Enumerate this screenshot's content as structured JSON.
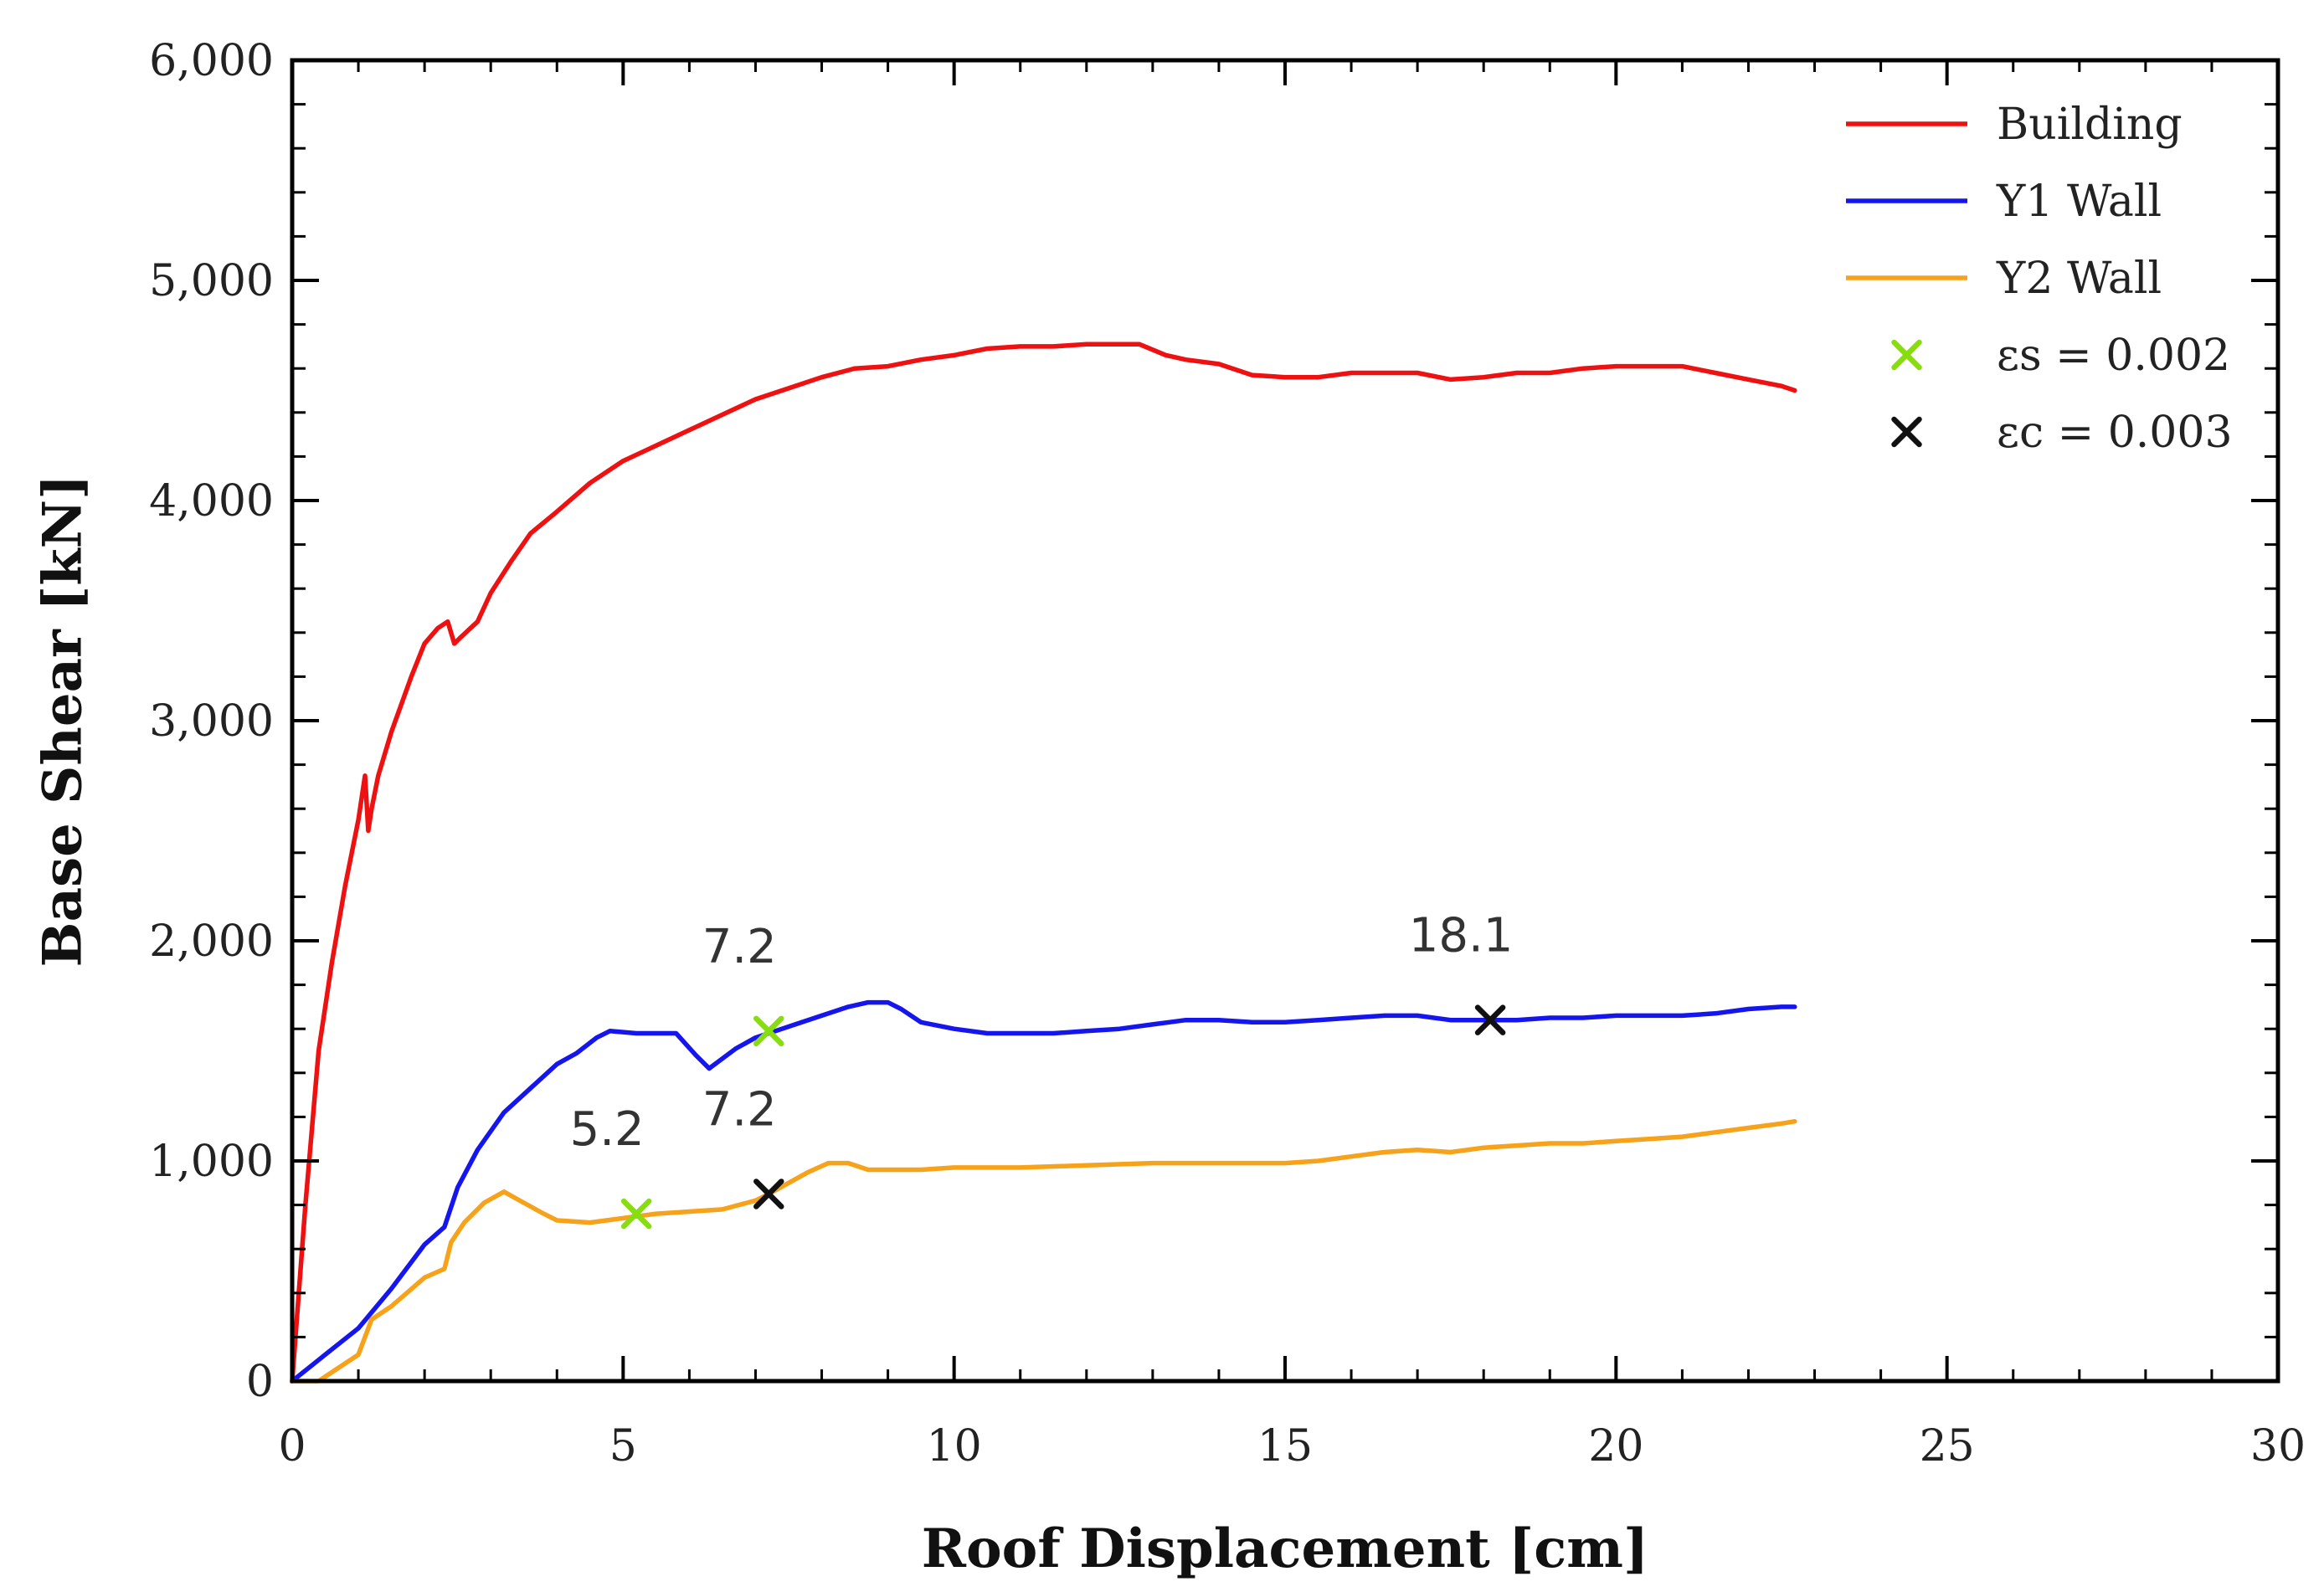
{
  "chart_data": {
    "type": "line",
    "xlabel": "Roof Displacement [cm]",
    "ylabel": "Base Shear [kN]",
    "xlim": [
      0,
      30
    ],
    "ylim": [
      0,
      6000
    ],
    "xticks": [
      0,
      5,
      10,
      15,
      20,
      25,
      30
    ],
    "xtick_labels": [
      "0",
      "5",
      "10",
      "15",
      "20",
      "25",
      "30"
    ],
    "yticks": [
      0,
      1000,
      2000,
      3000,
      4000,
      5000,
      6000
    ],
    "ytick_labels": [
      "0",
      "1,000",
      "2,000",
      "3,000",
      "4,000",
      "5,000",
      "6,000"
    ],
    "legend_position": "top-right",
    "series": [
      {
        "name": "Building",
        "color": "#ee1111",
        "x": [
          0,
          0.2,
          0.4,
          0.6,
          0.8,
          1.0,
          1.1,
          1.15,
          1.2,
          1.3,
          1.5,
          1.8,
          2.0,
          2.2,
          2.35,
          2.45,
          2.55,
          2.8,
          3.0,
          3.3,
          3.6,
          4.0,
          4.5,
          5.0,
          5.5,
          6.0,
          6.5,
          7.0,
          7.5,
          8.0,
          8.5,
          9.0,
          9.5,
          10.0,
          10.5,
          11.0,
          11.5,
          12.0,
          12.5,
          12.8,
          13.2,
          13.5,
          14.0,
          14.5,
          15.0,
          15.5,
          16.0,
          16.5,
          17.0,
          17.5,
          18.0,
          18.5,
          19.0,
          19.5,
          20.0,
          20.5,
          21.0,
          21.5,
          22.0,
          22.5,
          22.7
        ],
        "y": [
          0,
          800,
          1500,
          1900,
          2250,
          2550,
          2750,
          2500,
          2600,
          2750,
          2950,
          3200,
          3350,
          3420,
          3450,
          3350,
          3380,
          3450,
          3580,
          3720,
          3850,
          3950,
          4080,
          4180,
          4250,
          4320,
          4390,
          4460,
          4510,
          4560,
          4600,
          4610,
          4640,
          4660,
          4690,
          4700,
          4700,
          4710,
          4710,
          4710,
          4660,
          4640,
          4620,
          4570,
          4560,
          4560,
          4580,
          4580,
          4580,
          4550,
          4560,
          4580,
          4580,
          4600,
          4610,
          4610,
          4610,
          4580,
          4550,
          4520,
          4500
        ]
      },
      {
        "name": "Y1 Wall",
        "color": "#1515ee",
        "x": [
          0,
          0.5,
          1.0,
          1.5,
          2.0,
          2.3,
          2.5,
          2.8,
          3.2,
          3.6,
          4.0,
          4.3,
          4.6,
          4.8,
          5.2,
          5.8,
          6.1,
          6.3,
          6.7,
          7.0,
          7.3,
          7.6,
          8.0,
          8.4,
          8.7,
          9.0,
          9.2,
          9.5,
          10.0,
          10.5,
          11.0,
          11.5,
          12.0,
          12.5,
          13.0,
          13.5,
          14.0,
          14.5,
          15.0,
          15.5,
          16.0,
          16.5,
          17.0,
          17.5,
          18.0,
          18.5,
          19.0,
          19.5,
          20.0,
          20.5,
          21.0,
          21.5,
          22.0,
          22.5,
          22.7
        ],
        "y": [
          0,
          120,
          240,
          420,
          620,
          700,
          880,
          1050,
          1220,
          1330,
          1440,
          1490,
          1560,
          1590,
          1580,
          1580,
          1480,
          1420,
          1510,
          1560,
          1590,
          1620,
          1660,
          1700,
          1720,
          1720,
          1690,
          1630,
          1600,
          1580,
          1580,
          1580,
          1590,
          1600,
          1620,
          1640,
          1640,
          1630,
          1630,
          1640,
          1650,
          1660,
          1660,
          1640,
          1640,
          1640,
          1650,
          1650,
          1660,
          1660,
          1660,
          1670,
          1690,
          1700,
          1700
        ]
      },
      {
        "name": "Y2 Wall",
        "color": "#f7a21b",
        "x": [
          0,
          0.4,
          0.7,
          1.0,
          1.2,
          1.5,
          2.0,
          2.3,
          2.4,
          2.6,
          2.9,
          3.2,
          3.5,
          3.8,
          4.0,
          4.5,
          5.0,
          5.5,
          6.0,
          6.5,
          7.0,
          7.2,
          7.5,
          7.8,
          8.1,
          8.4,
          8.7,
          9.0,
          9.5,
          10.0,
          11.0,
          12.0,
          13.0,
          14.0,
          15.0,
          15.5,
          16.0,
          16.5,
          17.0,
          17.5,
          18.0,
          18.5,
          19.0,
          19.5,
          20.0,
          20.5,
          21.0,
          21.5,
          22.0,
          22.5,
          22.7
        ],
        "y": [
          0,
          0,
          60,
          120,
          280,
          340,
          470,
          510,
          630,
          720,
          810,
          860,
          810,
          760,
          730,
          720,
          740,
          760,
          770,
          780,
          820,
          850,
          900,
          950,
          990,
          990,
          960,
          960,
          960,
          970,
          970,
          980,
          990,
          990,
          990,
          1000,
          1020,
          1040,
          1050,
          1040,
          1060,
          1070,
          1080,
          1080,
          1090,
          1100,
          1110,
          1130,
          1150,
          1170,
          1180
        ]
      }
    ],
    "marker_series": [
      {
        "name": "εs = 0.002",
        "color": "#88dd11",
        "points": [
          {
            "x": 5.2,
            "y": 760,
            "label": "5.2"
          },
          {
            "x": 7.2,
            "y": 1590,
            "label": "7.2"
          }
        ]
      },
      {
        "name": "εc = 0.003",
        "color": "#111111",
        "points": [
          {
            "x": 7.2,
            "y": 850,
            "label": "7.2"
          },
          {
            "x": 18.1,
            "y": 1640,
            "label": "18.1"
          }
        ]
      }
    ],
    "annotations": [
      "5.2",
      "7.2",
      "7.2",
      "18.1"
    ]
  }
}
